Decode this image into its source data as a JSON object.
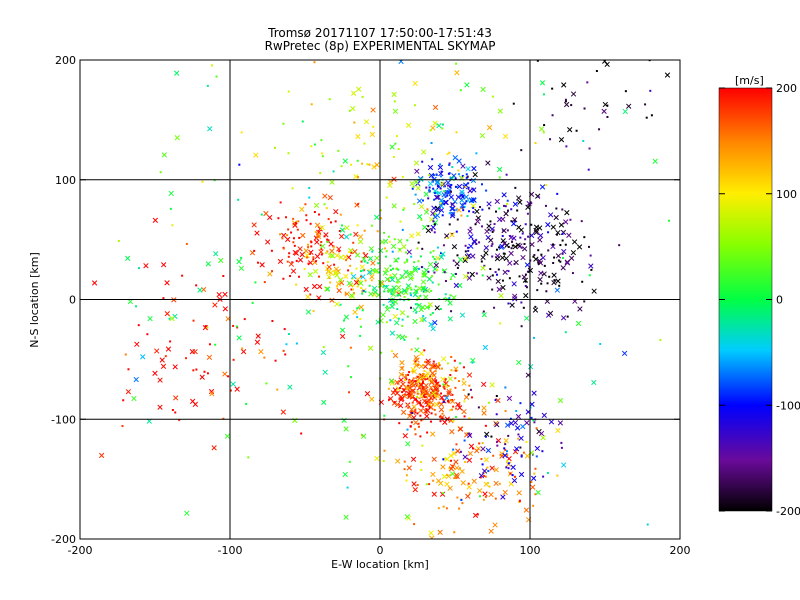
{
  "chart_data": {
    "type": "scatter",
    "title": "Tromsø 20171107 17:50:00-17:51:43",
    "subtitle": "RwPretec (8p) EXPERIMENTAL SKYMAP",
    "xlabel": "E-W location [km]",
    "ylabel": "N-S location [km]",
    "xlim": [
      -200,
      200
    ],
    "ylim": [
      -200,
      200
    ],
    "xticks": [
      -200,
      -100,
      0,
      100,
      200
    ],
    "yticks": [
      -200,
      -100,
      0,
      100,
      200
    ],
    "grid": true,
    "colorbar": {
      "label": "[m/s]",
      "min": -200,
      "max": 200,
      "ticks": [
        200,
        100,
        0,
        -100,
        -200
      ],
      "colormap": "rainbow (black - purple - blue - cyan - green - yellow - orange - red)"
    },
    "marker_types": [
      "x (cross)",
      "+ (dot/plus)"
    ],
    "clusters": [
      {
        "center_x": 30,
        "center_y": -80,
        "spread": 14,
        "n": 260,
        "velocity": 190
      },
      {
        "center_x": 30,
        "center_y": -65,
        "spread": 10,
        "n": 80,
        "velocity": 140
      },
      {
        "center_x": -45,
        "center_y": 45,
        "spread": 18,
        "n": 120,
        "velocity": 195
      },
      {
        "center_x": -25,
        "center_y": 25,
        "spread": 16,
        "n": 80,
        "velocity": 120
      },
      {
        "center_x": 15,
        "center_y": 15,
        "spread": 20,
        "n": 220,
        "velocity": 20
      },
      {
        "center_x": 45,
        "center_y": 90,
        "spread": 12,
        "n": 150,
        "velocity": -95
      },
      {
        "center_x": 80,
        "center_y": 50,
        "spread": 25,
        "n": 200,
        "velocity": -160
      },
      {
        "center_x": 110,
        "center_y": 30,
        "spread": 22,
        "n": 90,
        "velocity": -200
      },
      {
        "center_x": 60,
        "center_y": -140,
        "spread": 25,
        "n": 160,
        "velocity": 150
      },
      {
        "center_x": 85,
        "center_y": -115,
        "spread": 18,
        "n": 80,
        "velocity": -120
      },
      {
        "center_x": -120,
        "center_y": -40,
        "spread": 40,
        "n": 90,
        "velocity": 200
      },
      {
        "center_x": 0,
        "center_y": 120,
        "spread": 45,
        "n": 120,
        "velocity": 80
      },
      {
        "center_x": 140,
        "center_y": 170,
        "spread": 25,
        "n": 40,
        "velocity": -200
      },
      {
        "center_x": 0,
        "center_y": 0,
        "spread": 110,
        "n": 200,
        "velocity": 0
      }
    ]
  }
}
